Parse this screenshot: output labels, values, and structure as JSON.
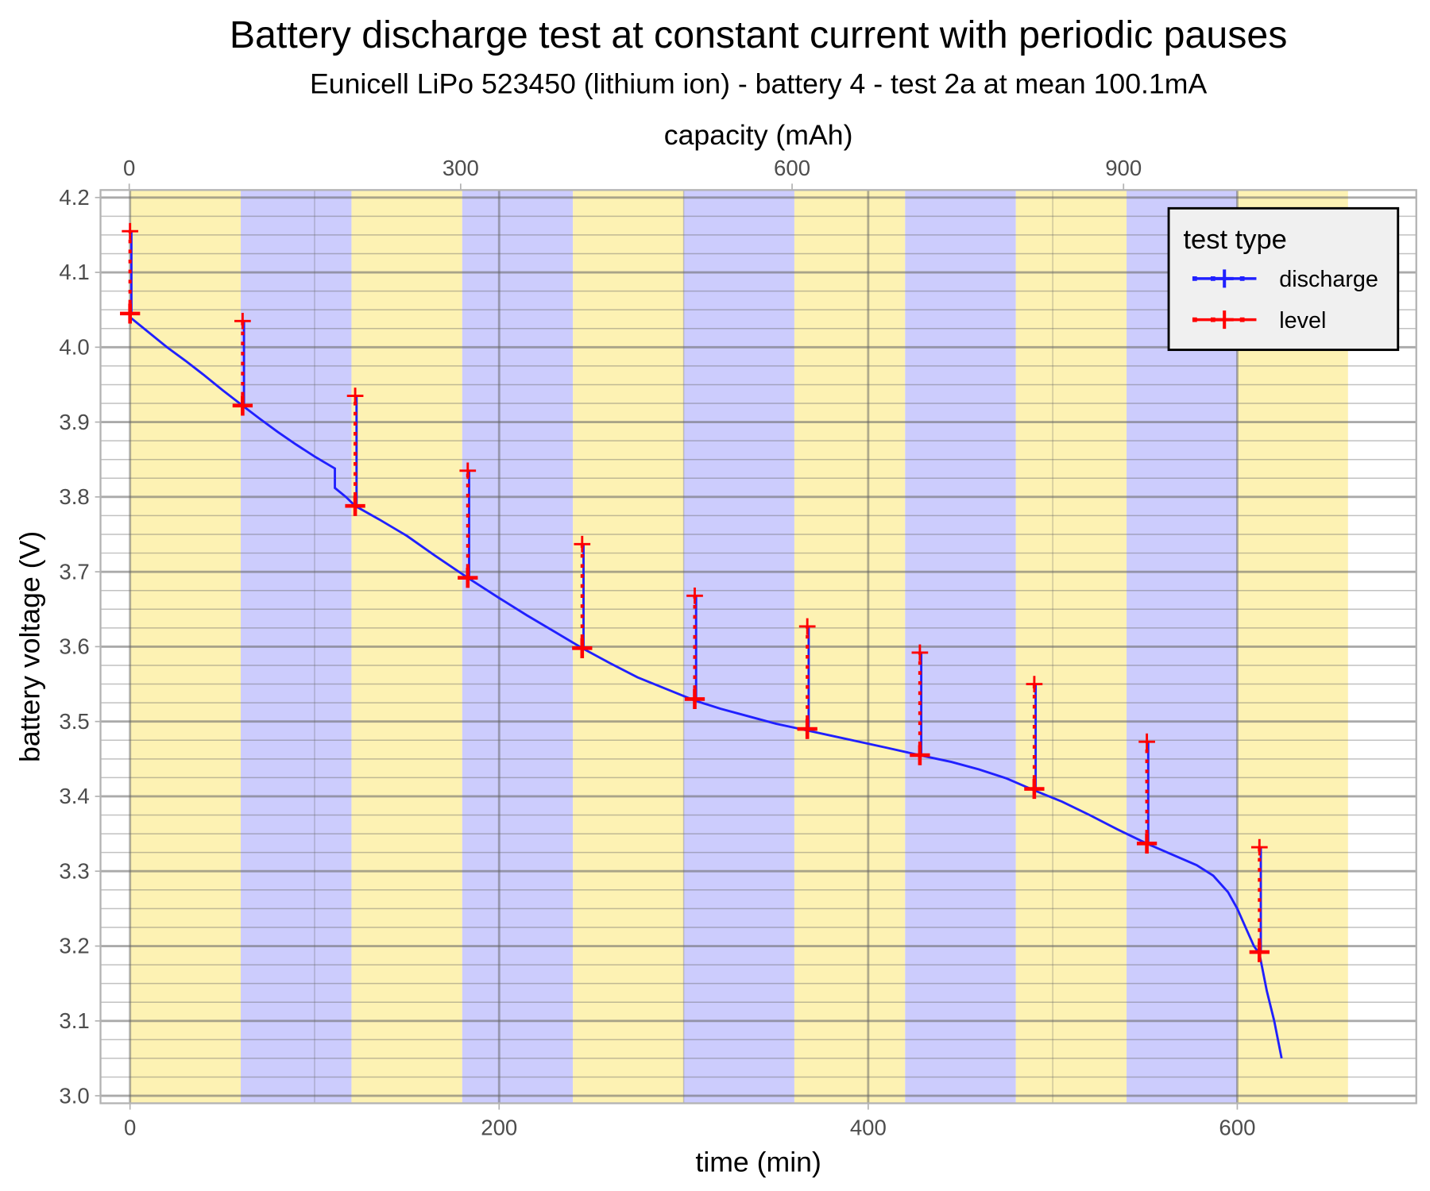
{
  "chart_data": {
    "type": "line",
    "title": "Battery discharge test at constant current with periodic pauses",
    "subtitle": "Eunicell LiPo 523450 (lithium ion) - battery 4 - test 2a at mean 100.1mA",
    "xlabel": "time (min)",
    "ylabel": "battery voltage (V)",
    "x2label": "capacity (mAh)",
    "xlim": [
      -16,
      697
    ],
    "ylim": [
      2.99,
      4.21
    ],
    "x2lim": [
      -26,
      1165
    ],
    "xticks": [
      0,
      200,
      400,
      600
    ],
    "xtick_labels": [
      "0",
      "200",
      "400",
      "600"
    ],
    "x2ticks": [
      0,
      300,
      600,
      900
    ],
    "x2tick_labels": [
      "0",
      "300",
      "600",
      "900"
    ],
    "yticks": [
      3.0,
      3.1,
      3.2,
      3.3,
      3.4,
      3.5,
      3.6,
      3.7,
      3.8,
      3.9,
      4.0,
      4.1,
      4.2
    ],
    "ytick_labels": [
      "3.0",
      "3.1",
      "3.2",
      "3.3",
      "3.4",
      "3.5",
      "3.6",
      "3.7",
      "3.8",
      "3.9",
      "4.0",
      "4.1",
      "4.2"
    ],
    "grid": true,
    "background_bands": {
      "period_min": 60,
      "start": 0,
      "end": 660,
      "colors": [
        "#fdf2b3",
        "#ccccfd"
      ]
    },
    "legend": {
      "title": "test type",
      "placement": "top-right",
      "entries": [
        {
          "label": "discharge",
          "color": "#2020ff"
        },
        {
          "label": "level",
          "color": "#ff0000"
        }
      ]
    },
    "series": [
      {
        "name": "discharge",
        "color": "#2020ff",
        "points": [
          [
            0,
            4.04
          ],
          [
            10,
            4.02
          ],
          [
            20,
            4.0
          ],
          [
            30,
            3.982
          ],
          [
            40,
            3.963
          ],
          [
            50,
            3.943
          ],
          [
            61,
            3.922
          ],
          [
            70,
            3.905
          ],
          [
            80,
            3.887
          ],
          [
            90,
            3.87
          ],
          [
            100,
            3.854
          ],
          [
            111,
            3.838
          ],
          [
            111,
            3.812
          ],
          [
            117,
            3.8
          ],
          [
            122,
            3.788
          ],
          [
            135,
            3.77
          ],
          [
            150,
            3.748
          ],
          [
            165,
            3.722
          ],
          [
            183,
            3.692
          ],
          [
            200,
            3.665
          ],
          [
            215,
            3.642
          ],
          [
            230,
            3.62
          ],
          [
            245,
            3.598
          ],
          [
            260,
            3.578
          ],
          [
            275,
            3.559
          ],
          [
            290,
            3.544
          ],
          [
            306,
            3.528
          ],
          [
            320,
            3.517
          ],
          [
            335,
            3.507
          ],
          [
            350,
            3.497
          ],
          [
            367,
            3.488
          ],
          [
            380,
            3.481
          ],
          [
            395,
            3.473
          ],
          [
            410,
            3.465
          ],
          [
            428,
            3.455
          ],
          [
            445,
            3.446
          ],
          [
            460,
            3.436
          ],
          [
            475,
            3.424
          ],
          [
            490,
            3.408
          ],
          [
            505,
            3.393
          ],
          [
            520,
            3.375
          ],
          [
            535,
            3.356
          ],
          [
            551,
            3.337
          ],
          [
            565,
            3.322
          ],
          [
            578,
            3.308
          ],
          [
            587,
            3.294
          ],
          [
            595,
            3.272
          ],
          [
            600,
            3.25
          ],
          [
            605,
            3.222
          ],
          [
            609,
            3.2
          ],
          [
            612,
            3.19
          ],
          [
            616,
            3.14
          ],
          [
            620,
            3.1
          ],
          [
            624,
            3.05
          ]
        ]
      },
      {
        "name": "level",
        "color": "#ff0000",
        "pauses": [
          {
            "t": 0,
            "start": 4.045,
            "end": 4.155
          },
          {
            "t": 61,
            "start": 3.922,
            "end": 4.035
          },
          {
            "t": 122,
            "start": 3.788,
            "end": 3.935
          },
          {
            "t": 183,
            "start": 3.692,
            "end": 3.835
          },
          {
            "t": 245,
            "start": 3.598,
            "end": 3.737
          },
          {
            "t": 306,
            "start": 3.53,
            "end": 3.668
          },
          {
            "t": 367,
            "start": 3.49,
            "end": 3.627
          },
          {
            "t": 428,
            "start": 3.455,
            "end": 3.592
          },
          {
            "t": 490,
            "start": 3.41,
            "end": 3.55
          },
          {
            "t": 551,
            "start": 3.337,
            "end": 3.473
          },
          {
            "t": 612,
            "start": 3.192,
            "end": 3.332
          }
        ]
      }
    ]
  }
}
